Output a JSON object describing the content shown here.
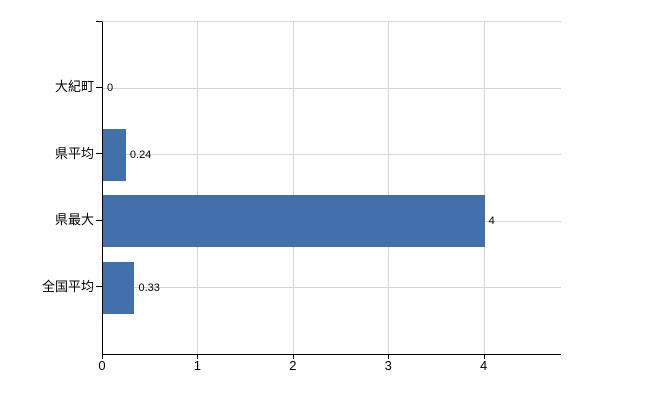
{
  "chart_data": {
    "type": "bar",
    "orientation": "horizontal",
    "title": "",
    "xlabel": "",
    "ylabel": "",
    "categories": [
      "大紀町",
      "県平均",
      "県最大",
      "全国平均"
    ],
    "values": [
      0,
      0.24,
      4,
      0.33
    ],
    "value_labels": [
      "0",
      "0.24",
      "4",
      "0.33"
    ],
    "x_tick_labels": [
      "0",
      "1",
      "2",
      "3",
      "4"
    ],
    "x_tick_values": [
      0,
      1,
      2,
      3,
      4
    ],
    "xlim": [
      0,
      4.8
    ],
    "grid": true,
    "legend": false,
    "colors": {
      "bar": "#4270ab",
      "gridline": "#d6d6d6",
      "axis": "#000000",
      "text": "#000000",
      "background": "#ffffff"
    }
  }
}
